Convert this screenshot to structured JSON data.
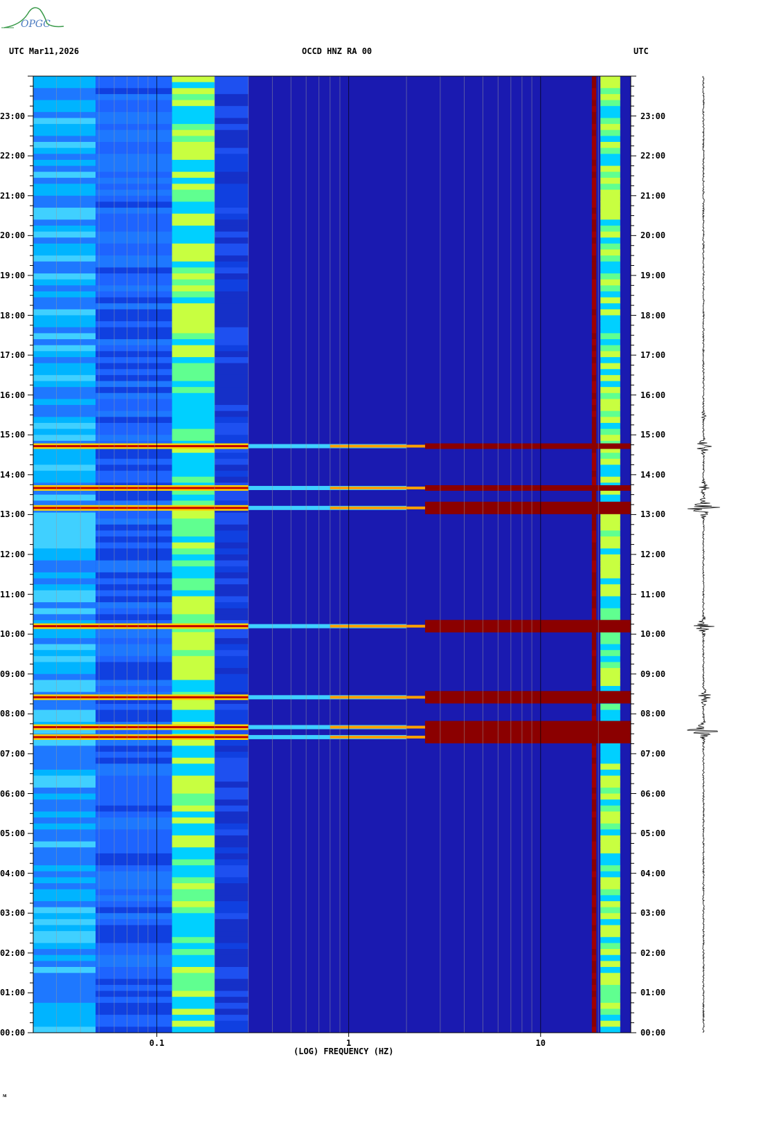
{
  "header": {
    "left": "UTC  Mar11,2026",
    "center": "OCCD HNZ RA 00",
    "right": "UTC"
  },
  "logo": {
    "text": "OPGC",
    "color": "#3a9a4a"
  },
  "footer_mark": "ᴍ",
  "chart_data": {
    "type": "heatmap",
    "xlabel": "(LOG) FREQUENCY (HZ)",
    "xscale": "log",
    "xlim": [
      0.0227,
      29.5
    ],
    "x_ticks": [
      {
        "value": 0.1,
        "label": "0.1"
      },
      {
        "value": 1,
        "label": "1"
      },
      {
        "value": 10,
        "label": "10"
      }
    ],
    "y_unit": "hours UTC",
    "ylim": [
      0,
      24
    ],
    "y_tick_labels": [
      "00:00",
      "01:00",
      "02:00",
      "03:00",
      "04:00",
      "05:00",
      "06:00",
      "07:00",
      "08:00",
      "09:00",
      "10:00",
      "11:00",
      "12:00",
      "13:00",
      "14:00",
      "15:00",
      "16:00",
      "17:00",
      "18:00",
      "19:00",
      "20:00",
      "21:00",
      "22:00",
      "23:00"
    ],
    "colormap": [
      "#00008b",
      "#0000cd",
      "#1e64ff",
      "#00c8ff",
      "#a0ff60",
      "#ffff00",
      "#ff8000",
      "#ff0000",
      "#8b0000"
    ],
    "background_level": "#1a1ab0",
    "persistent_bands": [
      {
        "f_min": 0.12,
        "f_max": 0.2,
        "level": "high"
      },
      {
        "f_min": 18.5,
        "f_max": 19.5,
        "level": "saturated"
      },
      {
        "f_min": 20.5,
        "f_max": 26,
        "level": "high"
      }
    ],
    "events": [
      {
        "time_utc": "07:25",
        "level": "saturated"
      },
      {
        "time_utc": "07:40",
        "level": "saturated"
      },
      {
        "time_utc": "08:25",
        "level": "saturated"
      },
      {
        "time_utc": "10:12",
        "level": "saturated"
      },
      {
        "time_utc": "13:10",
        "level": "saturated"
      },
      {
        "time_utc": "13:40",
        "level": "high"
      },
      {
        "time_utc": "14:43",
        "level": "high"
      }
    ],
    "grid": true
  },
  "seismogram": {
    "events": [
      {
        "time_utc": "07:35",
        "amplitude": 0.8
      },
      {
        "time_utc": "08:25",
        "amplitude": 0.6
      },
      {
        "time_utc": "10:12",
        "amplitude": 0.6
      },
      {
        "time_utc": "13:10",
        "amplitude": 1.0
      },
      {
        "time_utc": "13:40",
        "amplitude": 0.3
      },
      {
        "time_utc": "14:43",
        "amplitude": 0.5
      },
      {
        "time_utc": "15:30",
        "amplitude": 0.15
      }
    ]
  }
}
